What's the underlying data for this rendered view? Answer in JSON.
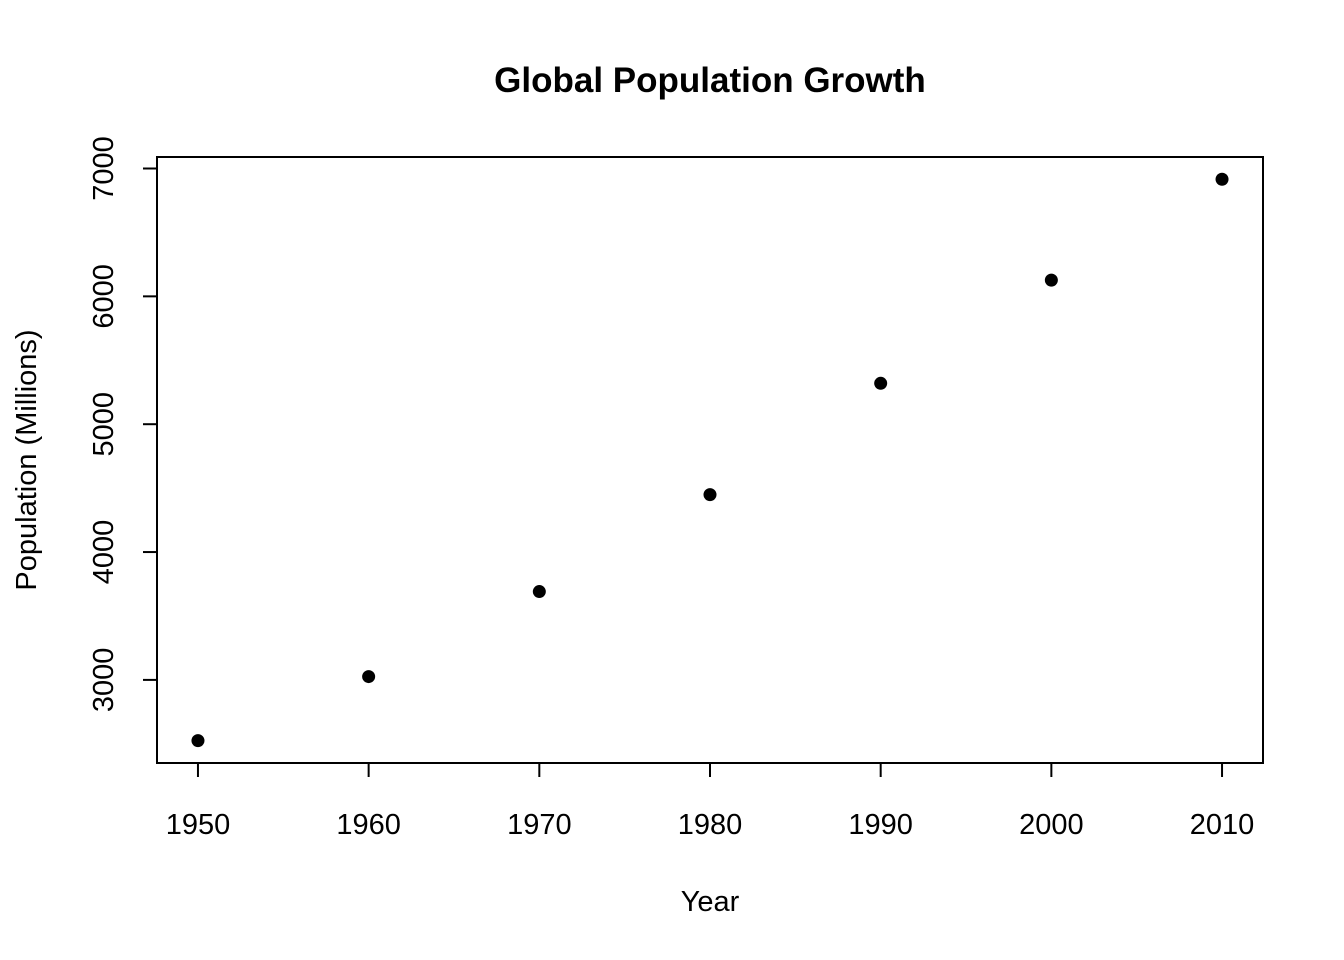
{
  "chart_data": {
    "type": "scatter",
    "title": "Global Population Growth",
    "xlabel": "Year",
    "ylabel": "Population (Millions)",
    "x": [
      1950,
      1960,
      1970,
      1980,
      1990,
      2000,
      2010
    ],
    "y": [
      2525,
      3026,
      3691,
      4449,
      5320,
      6127,
      6916
    ],
    "xticks": [
      1950,
      1960,
      1970,
      1980,
      1990,
      2000,
      2010
    ],
    "yticks": [
      3000,
      4000,
      5000,
      6000,
      7000
    ],
    "xlim": [
      1947.6,
      2012.4
    ],
    "ylim": [
      2350,
      7090
    ],
    "grid": false,
    "point_color": "#000000"
  }
}
